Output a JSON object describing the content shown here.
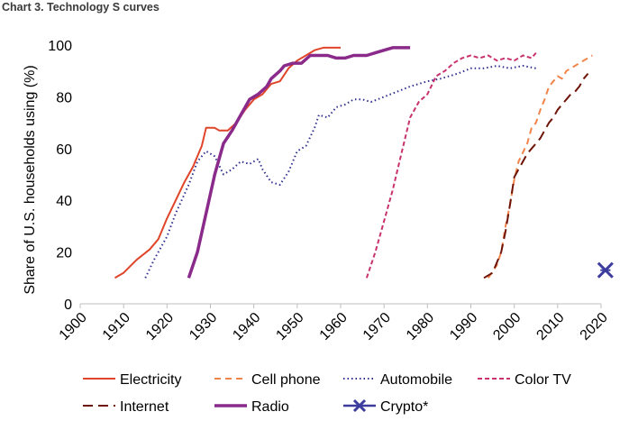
{
  "header": {
    "title": "Chart 3. Technology S curves"
  },
  "chart_data": {
    "type": "line",
    "title": "Chart 3. Technology S curves",
    "xlabel": "",
    "ylabel": "Share of U.S. households using (%)",
    "xlim": [
      1900,
      2020
    ],
    "ylim": [
      0,
      100
    ],
    "xticks": [
      1900,
      1910,
      1920,
      1930,
      1940,
      1950,
      1960,
      1970,
      1980,
      1990,
      2000,
      2010,
      2020
    ],
    "yticks": [
      0,
      20,
      40,
      60,
      80,
      100
    ],
    "grid": false,
    "legend_position": "bottom",
    "series": [
      {
        "name": "Electricity",
        "color": "#e0452a",
        "dash": "solid",
        "width": 2,
        "points": [
          [
            1908,
            10
          ],
          [
            1910,
            12
          ],
          [
            1913,
            17
          ],
          [
            1916,
            21
          ],
          [
            1918,
            25
          ],
          [
            1920,
            33
          ],
          [
            1922,
            40
          ],
          [
            1924,
            47
          ],
          [
            1926,
            53
          ],
          [
            1928,
            61
          ],
          [
            1929,
            68
          ],
          [
            1931,
            68
          ],
          [
            1932,
            67
          ],
          [
            1934,
            67
          ],
          [
            1936,
            70
          ],
          [
            1938,
            75
          ],
          [
            1940,
            79
          ],
          [
            1942,
            81
          ],
          [
            1944,
            85
          ],
          [
            1946,
            86
          ],
          [
            1948,
            91
          ],
          [
            1950,
            94
          ],
          [
            1952,
            96
          ],
          [
            1954,
            98
          ],
          [
            1956,
            99
          ],
          [
            1958,
            99
          ],
          [
            1960,
            99
          ]
        ]
      },
      {
        "name": "Cell phone",
        "color": "#f0844a",
        "dash": "7,5",
        "width": 2,
        "points": [
          [
            1994,
            10
          ],
          [
            1996,
            15
          ],
          [
            1997,
            20
          ],
          [
            1998,
            30
          ],
          [
            1999,
            38
          ],
          [
            2000,
            48
          ],
          [
            2001,
            55
          ],
          [
            2003,
            62
          ],
          [
            2004,
            68
          ],
          [
            2005,
            70
          ],
          [
            2006,
            75
          ],
          [
            2007,
            79
          ],
          [
            2008,
            84
          ],
          [
            2009,
            86
          ],
          [
            2010,
            88
          ],
          [
            2011,
            87
          ],
          [
            2012,
            90
          ],
          [
            2013,
            91
          ],
          [
            2014,
            92
          ],
          [
            2016,
            94
          ],
          [
            2018,
            96
          ]
        ]
      },
      {
        "name": "Automobile",
        "color": "#2f2f8f",
        "dash": "1.5,3",
        "width": 2,
        "points": [
          [
            1915,
            10
          ],
          [
            1917,
            17
          ],
          [
            1920,
            26
          ],
          [
            1922,
            35
          ],
          [
            1925,
            46
          ],
          [
            1927,
            55
          ],
          [
            1929,
            59
          ],
          [
            1931,
            57
          ],
          [
            1933,
            50
          ],
          [
            1935,
            52
          ],
          [
            1937,
            55
          ],
          [
            1939,
            54
          ],
          [
            1941,
            56
          ],
          [
            1942,
            52
          ],
          [
            1944,
            47
          ],
          [
            1946,
            46
          ],
          [
            1948,
            51
          ],
          [
            1950,
            59
          ],
          [
            1952,
            61
          ],
          [
            1954,
            68
          ],
          [
            1955,
            73
          ],
          [
            1957,
            72
          ],
          [
            1959,
            76
          ],
          [
            1961,
            77
          ],
          [
            1963,
            79
          ],
          [
            1965,
            79
          ],
          [
            1967,
            78
          ],
          [
            1970,
            80
          ],
          [
            1973,
            82
          ],
          [
            1976,
            84
          ],
          [
            1980,
            86
          ],
          [
            1983,
            87
          ],
          [
            1987,
            89
          ],
          [
            1990,
            91
          ],
          [
            1993,
            91
          ],
          [
            1996,
            92
          ],
          [
            1999,
            91
          ],
          [
            2002,
            92
          ],
          [
            2005,
            91
          ]
        ]
      },
      {
        "name": "Color TV",
        "color": "#c8336e",
        "dash": "5,3",
        "width": 2,
        "points": [
          [
            1966,
            10
          ],
          [
            1968,
            20
          ],
          [
            1970,
            32
          ],
          [
            1972,
            44
          ],
          [
            1974,
            58
          ],
          [
            1976,
            72
          ],
          [
            1978,
            78
          ],
          [
            1980,
            81
          ],
          [
            1982,
            88
          ],
          [
            1984,
            90
          ],
          [
            1986,
            93
          ],
          [
            1988,
            95
          ],
          [
            1990,
            96
          ],
          [
            1992,
            95
          ],
          [
            1994,
            96
          ],
          [
            1996,
            94
          ],
          [
            1998,
            95
          ],
          [
            2000,
            94
          ],
          [
            2002,
            96
          ],
          [
            2004,
            95
          ],
          [
            2005,
            97
          ]
        ]
      },
      {
        "name": "Internet",
        "color": "#6e1408",
        "dash": "11,6",
        "width": 2,
        "points": [
          [
            1993,
            10
          ],
          [
            1995,
            12
          ],
          [
            1997,
            20
          ],
          [
            1998,
            28
          ],
          [
            1999,
            38
          ],
          [
            2000,
            49
          ],
          [
            2001,
            52
          ],
          [
            2002,
            55
          ],
          [
            2003,
            58
          ],
          [
            2004,
            60
          ],
          [
            2005,
            62
          ],
          [
            2006,
            64
          ],
          [
            2007,
            67
          ],
          [
            2008,
            70
          ],
          [
            2009,
            72
          ],
          [
            2010,
            75
          ],
          [
            2011,
            77
          ],
          [
            2012,
            79
          ],
          [
            2013,
            81
          ],
          [
            2014,
            82
          ],
          [
            2015,
            84
          ],
          [
            2016,
            87
          ],
          [
            2017,
            89
          ]
        ]
      },
      {
        "name": "Radio",
        "color": "#8a2a8a",
        "dash": "solid",
        "width": 3.5,
        "points": [
          [
            1925,
            10
          ],
          [
            1927,
            20
          ],
          [
            1929,
            35
          ],
          [
            1931,
            50
          ],
          [
            1933,
            62
          ],
          [
            1935,
            67
          ],
          [
            1937,
            73
          ],
          [
            1939,
            79
          ],
          [
            1941,
            81
          ],
          [
            1943,
            84
          ],
          [
            1944,
            87
          ],
          [
            1946,
            90
          ],
          [
            1947,
            92
          ],
          [
            1949,
            93
          ],
          [
            1951,
            93
          ],
          [
            1953,
            96
          ],
          [
            1955,
            96
          ],
          [
            1957,
            96
          ],
          [
            1959,
            95
          ],
          [
            1961,
            95
          ],
          [
            1963,
            96
          ],
          [
            1966,
            96
          ],
          [
            1968,
            97
          ],
          [
            1970,
            98
          ],
          [
            1972,
            99
          ],
          [
            1976,
            99
          ]
        ]
      }
    ],
    "markers": [
      {
        "name": "Crypto*",
        "color": "#3c3c9e",
        "x": 2021,
        "y": 13
      }
    ]
  }
}
